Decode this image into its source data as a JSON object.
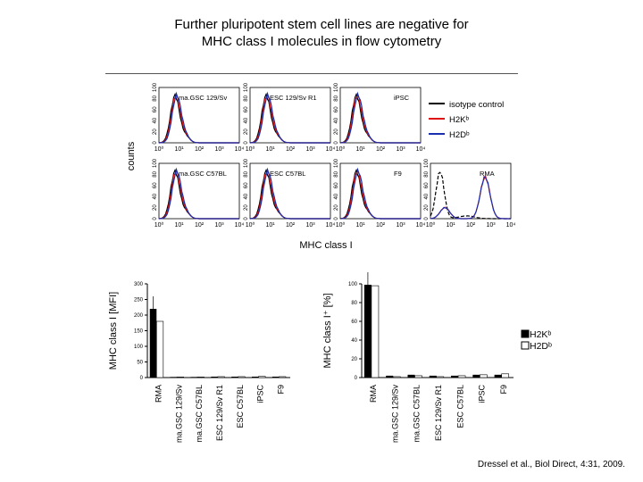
{
  "title_line1": "Further pluripotent stem cell lines are negative for",
  "title_line2": "MHC class I molecules in flow cytometry",
  "citation": "Dressel et al., Biol Direct, 4:31, 2009.",
  "flow": {
    "y_label": "counts",
    "x_label": "MHC class I",
    "y_ticks": [
      "0",
      "20",
      "40",
      "60",
      "80",
      "100"
    ],
    "x_ticks": [
      "10⁰",
      "10¹",
      "10²",
      "10³",
      "10⁴"
    ],
    "legend": [
      {
        "label": "isotype control",
        "color": "#000000"
      },
      {
        "label": "H2Kᵇ",
        "color": "#dd1111"
      },
      {
        "label": "H2Dᵇ",
        "color": "#1a2fb0"
      }
    ],
    "panels": [
      "ma.GSC 129/Sv",
      "ESC 129/Sv R1",
      "iPSC",
      "ma.GSC C57BL",
      "ESC C57BL",
      "F9",
      "RMA"
    ]
  },
  "mfi_chart": {
    "ylabel": "MHC class I [MFI]",
    "yticks": [
      "0",
      "50",
      "100",
      "150",
      "200",
      "250",
      "300"
    ]
  },
  "pct_chart": {
    "ylabel": "MHC class I⁺ [%]",
    "yticks": [
      "0",
      "20",
      "40",
      "60",
      "80",
      "100"
    ]
  },
  "bar_legend": [
    {
      "label": "H2Kᵇ",
      "fill": "#000000"
    },
    {
      "label": "H2Dᵇ",
      "fill": "#ffffff"
    }
  ],
  "chart_data": [
    {
      "type": "bar",
      "categories": [
        "RMA",
        "ma.GSC 129/Sv",
        "ma.GSC C57BL",
        "ESC 129/Sv R1",
        "ESC C57BL",
        "iPSC",
        "F9"
      ],
      "series": [
        {
          "name": "H2Kᵇ",
          "values": [
            220,
            2,
            2,
            3,
            3,
            3,
            3
          ]
        },
        {
          "name": "H2Dᵇ",
          "values": [
            180,
            2,
            2,
            3,
            3,
            4,
            3
          ]
        }
      ],
      "ylabel": "MHC class I [MFI]",
      "ylim": [
        0,
        300
      ]
    },
    {
      "type": "bar",
      "categories": [
        "RMA",
        "ma.GSC 129/Sv",
        "ma.GSC C57BL",
        "ESC 129/Sv R1",
        "ESC C57BL",
        "iPSC",
        "F9"
      ],
      "series": [
        {
          "name": "H2Kᵇ",
          "values": [
            99,
            2,
            3,
            2,
            2,
            3,
            3
          ]
        },
        {
          "name": "H2Dᵇ",
          "values": [
            98,
            1,
            2,
            1,
            2,
            3,
            4
          ]
        }
      ],
      "ylabel": "MHC class I⁺ [%]",
      "ylim": [
        0,
        100
      ]
    }
  ]
}
